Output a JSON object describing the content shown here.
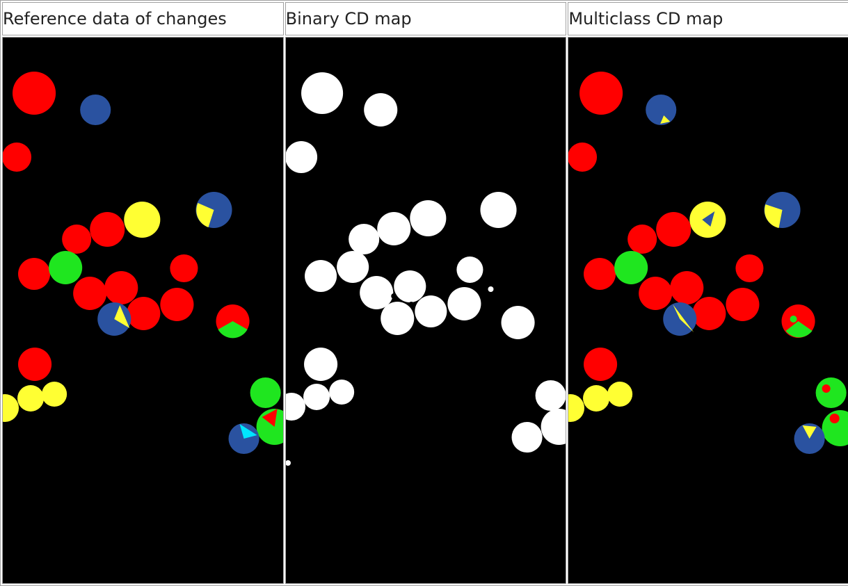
{
  "columns": [
    {
      "title": "Reference data of changes",
      "image": "reference-change-map"
    },
    {
      "title": "Binary CD map",
      "image": "binary-change-map"
    },
    {
      "title": "Multiclass CD map",
      "image": "multiclass-change-map"
    }
  ],
  "colors": {
    "background": "#000000",
    "red": "#ff0000",
    "blue": "#2a52a0",
    "yellow": "#ffff33",
    "green": "#1fe61f",
    "cyan": "#00e5ff",
    "white": "#ffffff",
    "border": "#a0a0a0"
  }
}
